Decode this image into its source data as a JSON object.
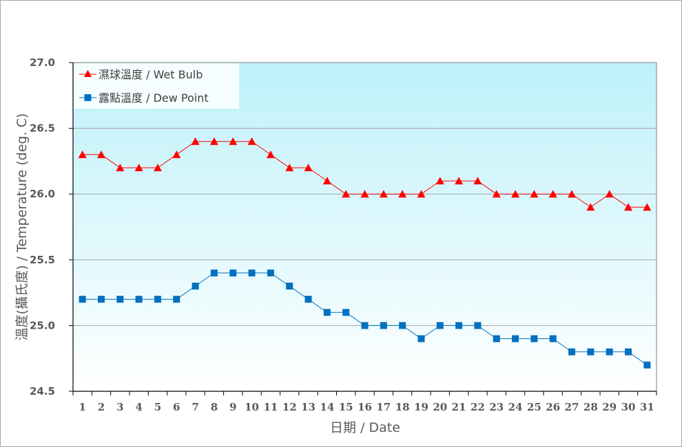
{
  "chart_data": {
    "type": "line",
    "title": "",
    "xlabel": "日期 / Date",
    "ylabel": "溫度(攝氏度) / Temperature (deg. C)",
    "ylim": [
      24.5,
      27.0
    ],
    "yticks": [
      "24.5",
      "25.0",
      "25.5",
      "26.0",
      "26.5",
      "27.0"
    ],
    "grid": true,
    "legend_position": "top-left",
    "categories": [
      "1",
      "2",
      "3",
      "4",
      "5",
      "6",
      "7",
      "8",
      "9",
      "10",
      "11",
      "12",
      "13",
      "14",
      "15",
      "16",
      "17",
      "18",
      "19",
      "20",
      "21",
      "22",
      "23",
      "24",
      "25",
      "26",
      "27",
      "28",
      "29",
      "30",
      "31"
    ],
    "series": [
      {
        "name": "濕球溫度 / Wet Bulb",
        "color": "#ff0000",
        "marker": "triangle",
        "values": [
          26.3,
          26.3,
          26.2,
          26.2,
          26.2,
          26.3,
          26.4,
          26.4,
          26.4,
          26.4,
          26.3,
          26.2,
          26.2,
          26.1,
          26.0,
          26.0,
          26.0,
          26.0,
          26.0,
          26.1,
          26.1,
          26.1,
          26.0,
          26.0,
          26.0,
          26.0,
          26.0,
          25.9,
          26.0,
          25.9,
          25.9
        ]
      },
      {
        "name": "露點溫度 / Dew Point",
        "color": "#0070c0",
        "marker": "square",
        "values": [
          25.2,
          25.2,
          25.2,
          25.2,
          25.2,
          25.2,
          25.3,
          25.4,
          25.4,
          25.4,
          25.4,
          25.3,
          25.2,
          25.1,
          25.1,
          25.0,
          25.0,
          25.0,
          24.9,
          25.0,
          25.0,
          25.0,
          24.9,
          24.9,
          24.9,
          24.9,
          24.8,
          24.8,
          24.8,
          24.8,
          24.7
        ]
      }
    ]
  },
  "style": {
    "plot_bg_top": "#bdf1f9",
    "plot_bg_bottom": "#ffffff",
    "grid_color": "#a6a6a6",
    "axis_color": "#000000",
    "text_color": "#595959"
  },
  "legend": {
    "wet_bulb": "濕球溫度 / Wet Bulb",
    "dew_point": "露點溫度 / Dew Point"
  },
  "axes": {
    "x_title": "日期 / Date",
    "y_title": "溫度(攝氏度) / Temperature (deg. C)"
  }
}
